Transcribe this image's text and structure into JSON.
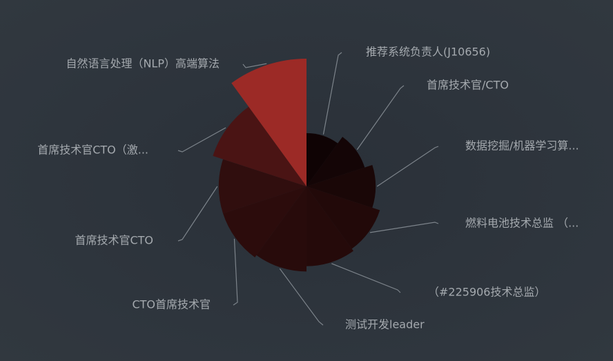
{
  "chart_data": {
    "type": "pie",
    "variant": "nightingale-rose",
    "title": "",
    "legend": "none",
    "slices": [
      {
        "label": "推荐系统负责人(J10656)",
        "value": 1.0,
        "color": "#0f0304"
      },
      {
        "label": "首席技术官/CTO",
        "value": 1.15,
        "color": "#140506"
      },
      {
        "label": "数据挖掘/机器学习算...",
        "value": 1.3,
        "color": "#1a0707"
      },
      {
        "label": "燃料电池技术总监 （...",
        "value": 1.45,
        "color": "#220909"
      },
      {
        "label": "（#225906技术总监）",
        "value": 1.5,
        "color": "#250a0a"
      },
      {
        "label": "测试开发leader",
        "value": 1.6,
        "color": "#280b0b"
      },
      {
        "label": "CTO首席技术官",
        "value": 1.65,
        "color": "#2c0c0c"
      },
      {
        "label": "首席技术官CTO",
        "value": 1.65,
        "color": "#300e0e"
      },
      {
        "label": "首席技术官CTO（激...",
        "value": 1.85,
        "color": "#4a1414"
      },
      {
        "label": "自然语言处理（NLP）高端算法",
        "value": 2.4,
        "color": "#9c2a26"
      }
    ]
  }
}
